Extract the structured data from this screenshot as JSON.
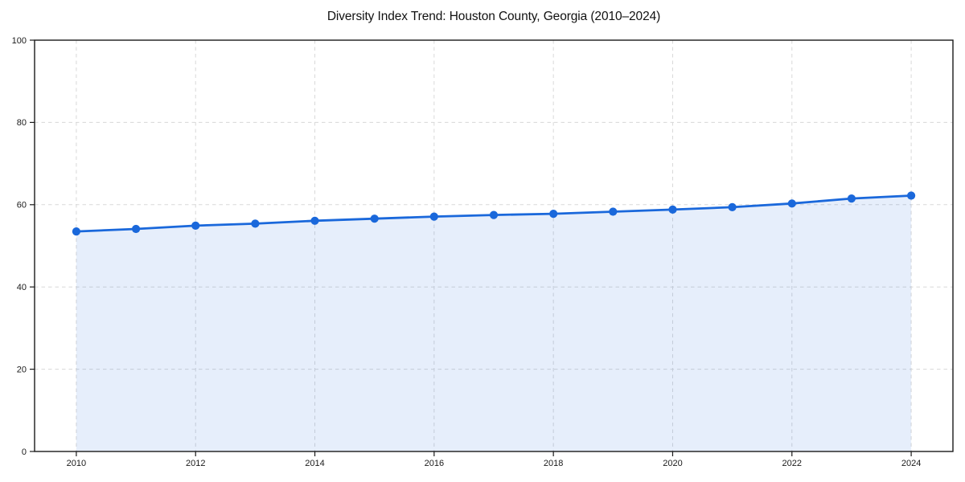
{
  "chart_data": {
    "type": "line",
    "title": "Diversity Index Trend: Houston County, Georgia (2010–2024)",
    "xlabel": "",
    "ylabel": "",
    "x": [
      2010,
      2011,
      2012,
      2013,
      2014,
      2015,
      2016,
      2017,
      2018,
      2019,
      2020,
      2021,
      2022,
      2023,
      2024
    ],
    "series": [
      {
        "name": "Diversity Index",
        "values": [
          53.5,
          54.1,
          54.9,
          55.4,
          56.1,
          56.6,
          57.1,
          57.5,
          57.8,
          58.3,
          58.8,
          59.4,
          60.3,
          61.5,
          62.2
        ]
      }
    ],
    "xlim": [
      2009.3,
      2024.7
    ],
    "ylim": [
      0,
      100
    ],
    "xticks": [
      2010,
      2012,
      2014,
      2016,
      2018,
      2020,
      2022,
      2024
    ],
    "yticks": [
      0,
      20,
      40,
      60,
      80,
      100
    ],
    "grid": true,
    "grid_style": "dashed",
    "legend": false,
    "area_fill": true,
    "colors": {
      "line": "#1a68db",
      "marker": "#1a68db",
      "fill": "rgba(26,104,219,0.11)",
      "grid": "#d8d8d8",
      "spine": "#1a1a1a",
      "tick_label": "#1a1a1a",
      "background": "#ffffff"
    }
  }
}
